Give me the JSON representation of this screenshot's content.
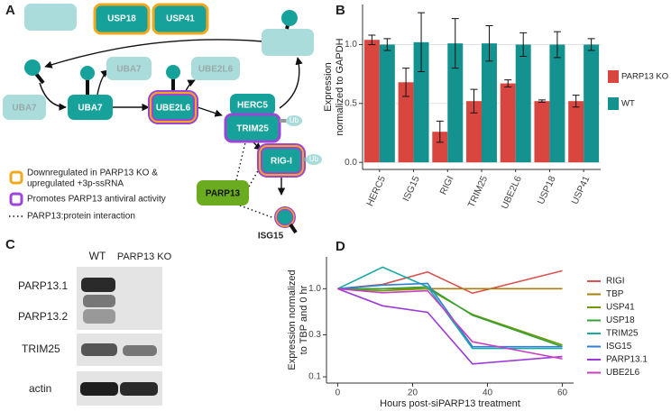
{
  "panels": [
    "A",
    "B",
    "C",
    "D"
  ],
  "diagram": {
    "nodes": [
      "USP18",
      "USP41",
      "UBA7",
      "UBA7",
      "UBA7",
      "UBE2L6",
      "UBE2L6",
      "HERC5",
      "TRIM25",
      "RIG-I",
      "PARP13",
      "ISG15",
      "Ub",
      "Ub"
    ],
    "legend": [
      "Downregulated in PARP13 KO &",
      "upregulated +3p-ssRNA",
      "Promotes PARP13 antiviral activity",
      "PARP13:protein interaction"
    ]
  },
  "blot": {
    "lanes": [
      "WT",
      "PARP13 KO"
    ],
    "bands": [
      "PARP13.1",
      "PARP13.2",
      "TRIM25",
      "actin"
    ]
  },
  "chart_data": [
    {
      "type": "bar",
      "ylabel": [
        "Expression",
        "normalized to GAPDH"
      ],
      "categories": [
        "HERC5",
        "ISG15",
        "RIGI",
        "TRIM25",
        "UBE2L6",
        "USP18",
        "USP41"
      ],
      "series": [
        {
          "name": "PARP13 KO",
          "color": "#d9463f",
          "values": [
            1.04,
            0.68,
            0.26,
            0.52,
            0.67,
            0.52,
            0.52
          ],
          "errors": [
            0.04,
            0.12,
            0.09,
            0.1,
            0.03,
            0.01,
            0.05
          ]
        },
        {
          "name": "WT",
          "color": "#13928f",
          "values": [
            1.0,
            1.02,
            1.01,
            1.01,
            1.0,
            1.0,
            1.0
          ],
          "errors": [
            0.05,
            0.25,
            0.21,
            0.15,
            0.1,
            0.11,
            0.05
          ]
        }
      ],
      "ylim": [
        -0.06,
        1.34
      ],
      "yticks": [
        {
          "value": 0,
          "label": "0.0"
        },
        0.5,
        {
          "value": 1,
          "label": "1.0"
        }
      ],
      "grid": true
    },
    {
      "type": "line",
      "ylabel": [
        "Expression normalized",
        "to TBP and 0 hr"
      ],
      "xlabel": "Hours post-siPARP13 treatment",
      "x": [
        0,
        12,
        24,
        36,
        60
      ],
      "series": [
        {
          "name": "RIGI",
          "color": "#d9534f",
          "values": [
            1.0,
            1.12,
            1.55,
            0.89,
            1.6
          ]
        },
        {
          "name": "TBP",
          "color": "#a87f0a",
          "values": [
            1.0,
            1.0,
            1.0,
            1.0,
            1.0
          ]
        },
        {
          "name": "USP41",
          "color": "#6f9a08",
          "values": [
            1.0,
            0.95,
            1.0,
            0.51,
            0.23
          ]
        },
        {
          "name": "USP18",
          "color": "#35a035",
          "values": [
            1.0,
            1.0,
            1.05,
            0.5,
            0.22
          ]
        },
        {
          "name": "TRIM25",
          "color": "#19aaa2",
          "values": [
            1.0,
            1.76,
            1.05,
            0.21,
            0.21
          ]
        },
        {
          "name": "ISG15",
          "color": "#2f7fd3",
          "values": [
            1.0,
            1.1,
            1.15,
            0.22,
            0.22
          ]
        },
        {
          "name": "PARP13.1",
          "color": "#9b3ad8",
          "values": [
            1.0,
            0.64,
            0.54,
            0.14,
            0.17
          ]
        },
        {
          "name": "UBE2L6",
          "color": "#c93fc2",
          "values": [
            1.0,
            0.9,
            0.95,
            0.25,
            0.16
          ]
        }
      ],
      "xlim": [
        -3,
        63
      ],
      "xticks": [
        0,
        20,
        40,
        60
      ],
      "ylim": [
        0.085,
        2.3
      ],
      "yticks": [
        0.1,
        0.3,
        {
          "value": 1,
          "label": "1.0"
        }
      ],
      "log_y": true,
      "grid": false
    }
  ]
}
